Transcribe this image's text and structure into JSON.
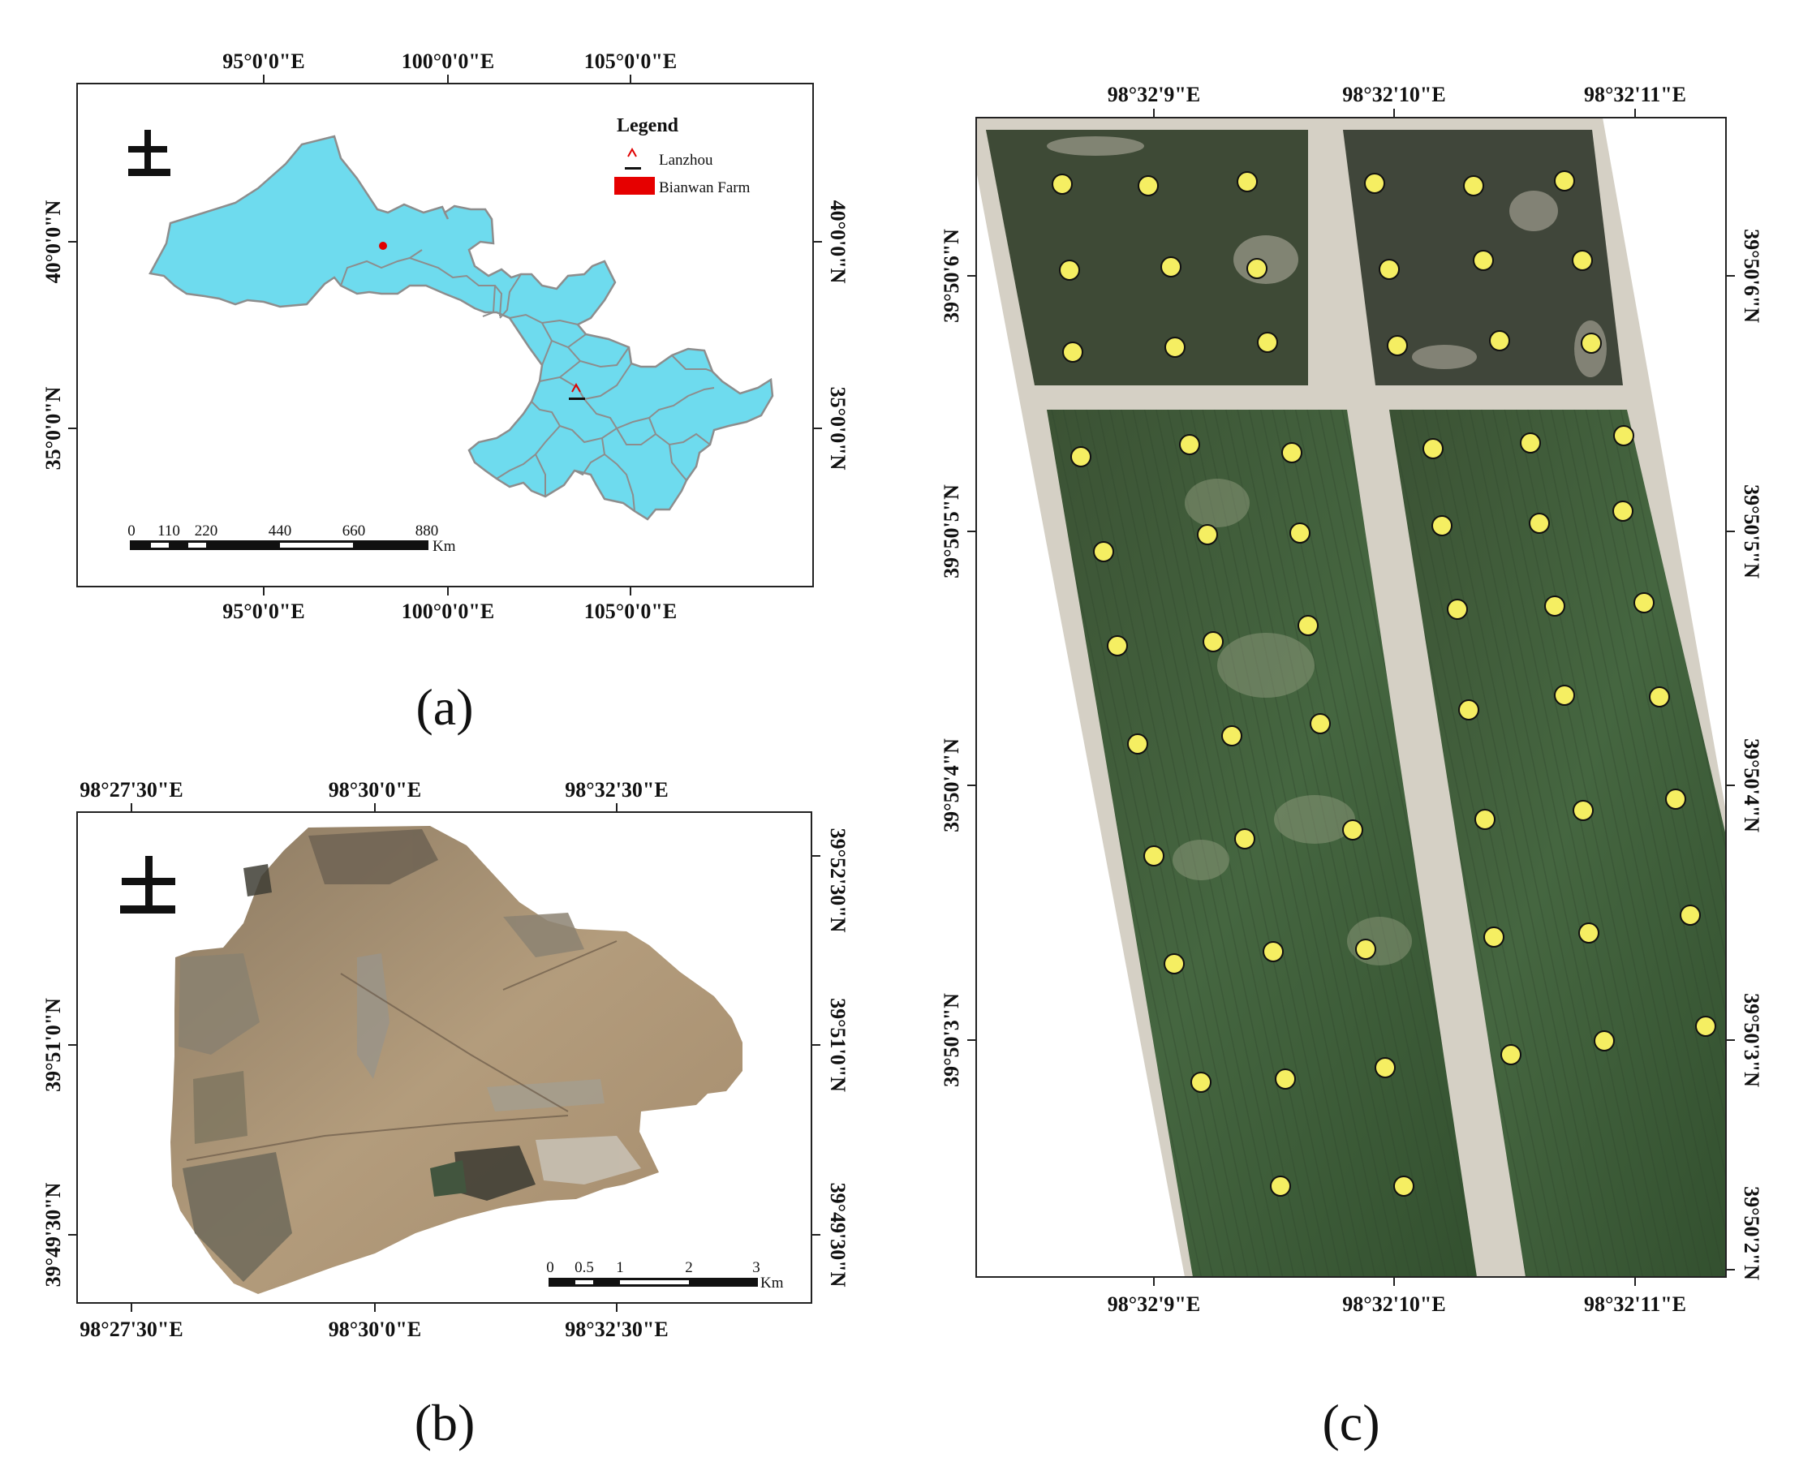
{
  "panel_a": {
    "label": "(a)",
    "lon_ticks": [
      "95°0'0\"E",
      "100°0'0\"E",
      "105°0'0\"E"
    ],
    "lat_ticks": [
      "40°0'0\"N",
      "35°0'0\"N"
    ],
    "legend": {
      "title": "Legend",
      "items": [
        {
          "label": "Lanzhou",
          "symbol": "capital-marker-icon"
        },
        {
          "label": "Bianwan Farm",
          "symbol": "red-patch-icon"
        }
      ]
    },
    "scale_bar": {
      "ticks": [
        "0",
        "110",
        "220",
        "440",
        "660",
        "880"
      ],
      "unit": "Km"
    },
    "colors": {
      "province_fill": "#6edbee",
      "province_border": "#8d8d8d",
      "marker": "#e00000"
    }
  },
  "panel_b": {
    "label": "(b)",
    "lon_ticks": [
      "98°27'30\"E",
      "98°30'0\"E",
      "98°32'30\"E"
    ],
    "lat_ticks": [
      "39°52'30\"N",
      "39°51'0\"N",
      "39°49'30\"N"
    ],
    "scale_bar": {
      "ticks": [
        "0",
        "0.5",
        "1",
        "2",
        "3"
      ],
      "unit": "Km"
    },
    "colors": {
      "imagery_base": "#a99275"
    }
  },
  "panel_c": {
    "label": "(c)",
    "lon_ticks": [
      "98°32'9\"E",
      "98°32'10\"E",
      "98°32'11\"E"
    ],
    "lat_ticks": [
      "39°50'6\"N",
      "39°50'5\"N",
      "39°50'4\"N",
      "39°50'3\"N",
      "39°50'2\"N"
    ],
    "colors": {
      "field": "#3e5a35",
      "sample_point": "#f5ee62"
    },
    "sample_point_count": 59
  },
  "north_arrow": "north-arrow-icon"
}
